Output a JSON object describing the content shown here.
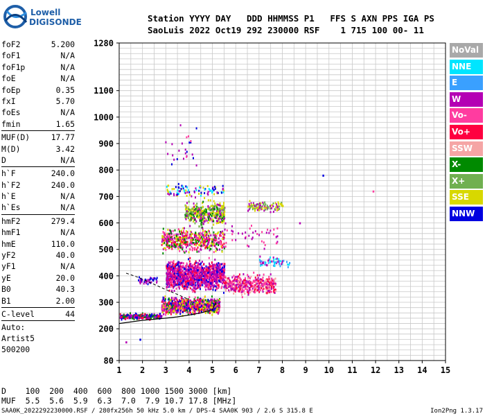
{
  "logo": {
    "line1": "Lowell",
    "line2": "DIGISONDE"
  },
  "header": {
    "line1": "Station YYYY DAY   DDD HHMMSS P1   FFS S AXN PPS IGA PS",
    "line2": "SaoLuis 2022 Oct19 292 230000 RSF    1 715 100 00- 11"
  },
  "params": [
    {
      "name": "foF2",
      "value": "5.200"
    },
    {
      "name": "foF1",
      "value": "N/A"
    },
    {
      "name": "foF1p",
      "value": "N/A"
    },
    {
      "name": "foE",
      "value": "N/A"
    },
    {
      "name": "foEp",
      "value": "0.35"
    },
    {
      "name": "fxI",
      "value": "5.70"
    },
    {
      "name": "foEs",
      "value": "N/A"
    },
    {
      "name": "fmin",
      "value": "1.65"
    },
    {
      "sep": true
    },
    {
      "name": "MUF(D)",
      "value": "17.77"
    },
    {
      "name": "M(D)",
      "value": "3.42"
    },
    {
      "name": "D",
      "value": "N/A"
    },
    {
      "sep": true
    },
    {
      "name": "h`F",
      "value": "240.0"
    },
    {
      "name": "h`F2",
      "value": "240.0"
    },
    {
      "name": "h`E",
      "value": "N/A"
    },
    {
      "name": "h`Es",
      "value": "N/A"
    },
    {
      "sep": true
    },
    {
      "name": "hmF2",
      "value": "279.4"
    },
    {
      "name": "hmF1",
      "value": "N/A"
    },
    {
      "name": "hmE",
      "value": "110.0"
    },
    {
      "name": "yF2",
      "value": "40.0"
    },
    {
      "name": "yF1",
      "value": "N/A"
    },
    {
      "name": "yE",
      "value": "20.0"
    },
    {
      "name": "B0",
      "value": "40.3"
    },
    {
      "name": "B1",
      "value": "2.00"
    },
    {
      "sep": true
    },
    {
      "name": "C-level",
      "value": "44"
    },
    {
      "sep": true
    }
  ],
  "autoscale": {
    "line1": "Auto:",
    "line2": "Artist5",
    "line3": "500200"
  },
  "legend": [
    {
      "label": "NoVal",
      "color": "#a9a9a9"
    },
    {
      "label": "NNE",
      "color": "#00e5ff"
    },
    {
      "label": "E",
      "color": "#3aa0ff"
    },
    {
      "label": "W",
      "color": "#b400b4"
    },
    {
      "label": "Vo-",
      "color": "#ff3ca0"
    },
    {
      "label": "Vo+",
      "color": "#ff0040"
    },
    {
      "label": "SSW",
      "color": "#f5a5a5"
    },
    {
      "label": "X-",
      "color": "#008a00"
    },
    {
      "label": "X+",
      "color": "#70b050"
    },
    {
      "label": "SSE",
      "color": "#d8d800"
    },
    {
      "label": "NNW",
      "color": "#0000e0"
    }
  ],
  "chart_data": {
    "type": "scatter",
    "title": "",
    "xlabel": "",
    "ylabel": "",
    "xlim": [
      1,
      15
    ],
    "ylim": [
      80,
      1280
    ],
    "xticks": [
      "1",
      "2",
      "3",
      "4",
      "5",
      "6",
      "7",
      "8",
      "9",
      "10",
      "11",
      "12",
      "13",
      "14",
      "15"
    ],
    "yticks": [
      {
        "value": 80,
        "label": "80"
      },
      {
        "value": 200,
        "label": "200"
      },
      {
        "value": 300,
        "label": "300"
      },
      {
        "value": 400,
        "label": "400"
      },
      {
        "value": 500,
        "label": "500"
      },
      {
        "value": 600,
        "label": "600"
      },
      {
        "value": 700,
        "label": "700"
      },
      {
        "value": 800,
        "label": "800"
      },
      {
        "value": 900,
        "label": "900"
      },
      {
        "value": 1000,
        "label": "1000"
      },
      {
        "value": 1100,
        "label": "1100"
      },
      {
        "value": 1280,
        "label": "1280"
      }
    ],
    "grid": true,
    "clusters": [
      {
        "x": [
          1.0,
          2.8
        ],
        "y": [
          235,
          265
        ],
        "n": 220,
        "colors": [
          "#0000e0",
          "#ff0040",
          "#b400b4",
          "#008a00"
        ]
      },
      {
        "x": [
          2.8,
          5.3
        ],
        "y": [
          250,
          330
        ],
        "n": 900,
        "colors": [
          "#ff0040",
          "#ff3ca0",
          "#b400b4",
          "#008a00",
          "#0000e0",
          "#d8d800"
        ]
      },
      {
        "x": [
          3.0,
          5.5
        ],
        "y": [
          330,
          480
        ],
        "n": 1300,
        "colors": [
          "#b400b4",
          "#b400b4",
          "#ff3ca0",
          "#0000e0",
          "#ff0040"
        ]
      },
      {
        "x": [
          2.8,
          5.5
        ],
        "y": [
          480,
          600
        ],
        "n": 500,
        "colors": [
          "#b400b4",
          "#ff0040",
          "#008a00",
          "#d8d800",
          "#ff3ca0"
        ]
      },
      {
        "x": [
          3.8,
          5.5
        ],
        "y": [
          580,
          700
        ],
        "n": 380,
        "colors": [
          "#d8d800",
          "#d8d800",
          "#70b050",
          "#b400b4",
          "#008a00"
        ]
      },
      {
        "x": [
          3.0,
          5.5
        ],
        "y": [
          690,
          760
        ],
        "n": 90,
        "colors": [
          "#0000e0",
          "#b400b4",
          "#00e5ff",
          "#d8d800"
        ]
      },
      {
        "x": [
          5.5,
          7.7
        ],
        "y": [
          320,
          420
        ],
        "n": 420,
        "colors": [
          "#b400b4",
          "#ff3ca0",
          "#ff0040",
          "#f5a5a5"
        ]
      },
      {
        "x": [
          6.5,
          8.0
        ],
        "y": [
          640,
          690
        ],
        "n": 110,
        "colors": [
          "#d8d800",
          "#b400b4",
          "#70b050"
        ]
      },
      {
        "x": [
          7.0,
          8.3
        ],
        "y": [
          430,
          480
        ],
        "n": 55,
        "colors": [
          "#b400b4",
          "#00e5ff",
          "#3aa0ff"
        ]
      },
      {
        "x": [
          1.8,
          2.6
        ],
        "y": [
          370,
          400
        ],
        "n": 40,
        "colors": [
          "#0000e0",
          "#b400b4"
        ]
      },
      {
        "x": [
          2.9,
          4.3
        ],
        "y": [
          780,
          1000
        ],
        "n": 25,
        "colors": [
          "#b400b4",
          "#ff3ca0",
          "#0000e0"
        ]
      },
      {
        "x": [
          5.5,
          7.8
        ],
        "y": [
          480,
          620
        ],
        "n": 45,
        "colors": [
          "#b400b4",
          "#ff3ca0"
        ]
      }
    ],
    "isolated_points": [
      {
        "x": 9.75,
        "y": 780,
        "color": "#0000e0"
      },
      {
        "x": 11.9,
        "y": 720,
        "color": "#ff3ca0"
      },
      {
        "x": 1.3,
        "y": 150,
        "color": "#b400b4"
      },
      {
        "x": 1.9,
        "y": 160,
        "color": "#0000e0"
      },
      {
        "x": 8.75,
        "y": 600,
        "color": "#b400b4"
      }
    ],
    "trace_curve": [
      [
        1,
        220
      ],
      [
        2,
        232
      ],
      [
        3,
        240
      ],
      [
        3.5,
        245
      ],
      [
        4,
        252
      ],
      [
        4.5,
        260
      ],
      [
        5,
        272
      ],
      [
        5.1,
        290
      ],
      [
        5.15,
        300
      ]
    ],
    "trace_dashed": [
      [
        1.3,
        410
      ],
      [
        1.8,
        395
      ],
      [
        2.4,
        372
      ],
      [
        3.0,
        348
      ],
      [
        3.5,
        330
      ],
      [
        4.0,
        310
      ]
    ]
  },
  "d_muf": {
    "d_line": "D    100  200  400  600  800 1000 1500 3000 [km]",
    "muf_line": "MUF  5.5  5.6  5.9  6.3  7.0  7.9 10.7 17.8 [MHz]"
  },
  "footer": {
    "left": "SAA0K_2022292230000.RSF / 280fx256h 50 kHz 5.0 km / DPS-4 SAA0K 903 / 2.6 S 315.8 E",
    "right": "Ion2Png 1.3.17"
  }
}
